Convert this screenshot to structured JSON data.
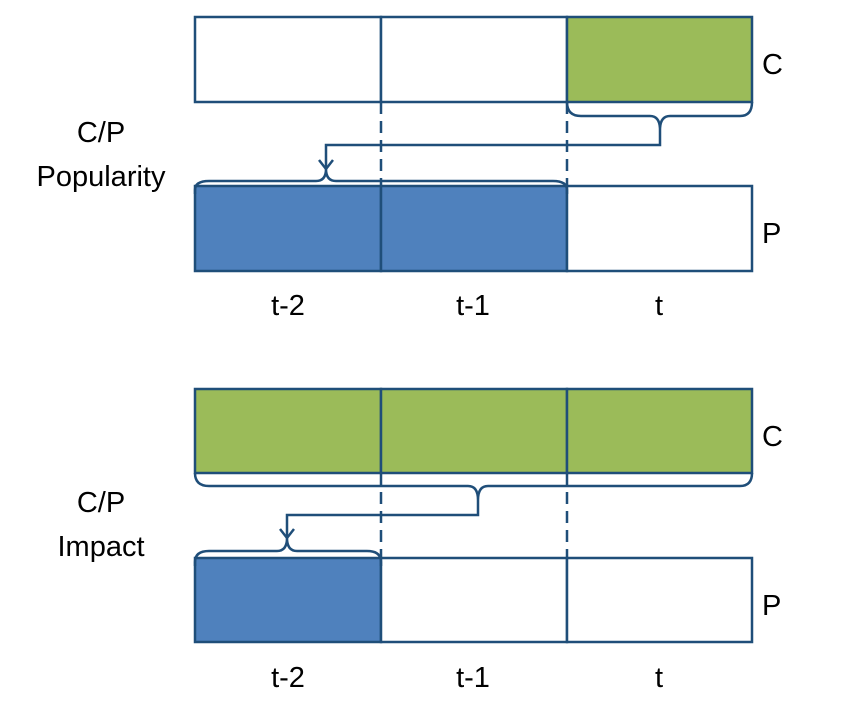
{
  "colors": {
    "c_fill": "#9BBB59",
    "p_fill": "#4F81BD",
    "empty_fill": "#FFFFFF",
    "stroke": "#1F4E79"
  },
  "panels": [
    {
      "label_line1": "C/P",
      "label_line2": "Popularity",
      "c_row_label": "C",
      "p_row_label": "P",
      "columns": [
        "t-2",
        "t-1",
        "t"
      ],
      "c_filled": [
        false,
        false,
        true
      ],
      "p_filled": [
        true,
        true,
        false
      ]
    },
    {
      "label_line1": "C/P",
      "label_line2": "Impact",
      "c_row_label": "C",
      "p_row_label": "P",
      "columns": [
        "t-2",
        "t-1",
        "t"
      ],
      "c_filled": [
        true,
        true,
        true
      ],
      "p_filled": [
        true,
        false,
        false
      ]
    }
  ]
}
